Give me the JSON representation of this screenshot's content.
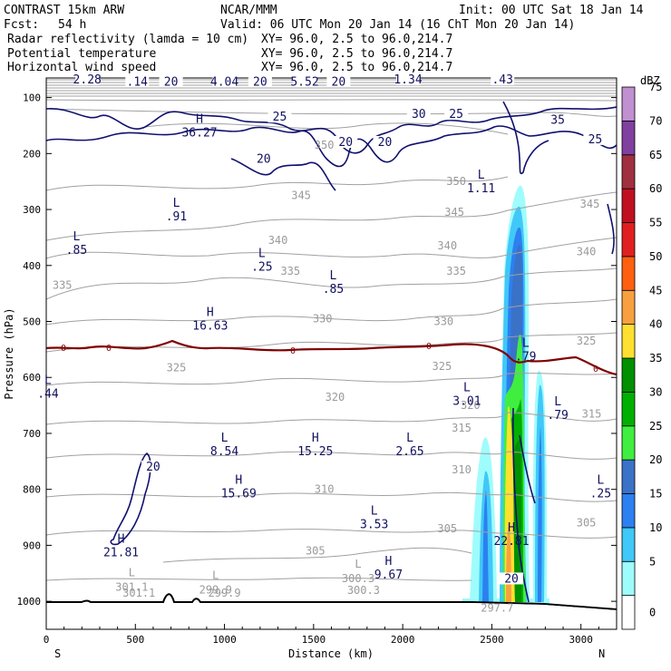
{
  "header": {
    "model": "CONTRAST 15km ARW",
    "org": "NCAR/MMM",
    "init": "Init: 00 UTC Sat 18 Jan 14",
    "fcst_label": "Fcst:",
    "fcst_value": "54 h",
    "valid": "Valid: 06 UTC Mon 20 Jan 14 (16 ChT Mon 20 Jan 14)",
    "fields": [
      {
        "name": "Radar reflectivity (lamda = 10 cm)",
        "xy": "XY=  96.0,  2.5 to  96.0,214.7",
        "color": "#000000"
      },
      {
        "name": "Potential temperature",
        "xy": "XY=  96.0,  2.5 to  96.0,214.7",
        "color": "#b0b0b0"
      },
      {
        "name": "Horizontal wind speed",
        "xy": "XY=  96.0,  2.5 to  96.0,214.7",
        "color": "#000080"
      }
    ]
  },
  "chart_data": {
    "type": "cross-section",
    "xlabel": "Distance (km)",
    "ylabel": "Pressure (hPa)",
    "xlim": [
      0,
      3200
    ],
    "ylim": [
      1050,
      65
    ],
    "x_ticks": [
      "0",
      "500",
      "1000",
      "1500",
      "2000",
      "2500",
      "3000"
    ],
    "x_tick_values": [
      0,
      500,
      1000,
      1500,
      2000,
      2500,
      3000
    ],
    "y_ticks": [
      "100",
      "200",
      "300",
      "400",
      "500",
      "600",
      "700",
      "800",
      "900",
      "1000"
    ],
    "y_tick_values": [
      100,
      200,
      300,
      400,
      500,
      600,
      700,
      800,
      900,
      1000
    ],
    "x_end_labels": {
      "left": "S",
      "right": "N"
    },
    "colorbar": {
      "unit": "dBZ",
      "levels": [
        "0",
        "5",
        "10",
        "15",
        "20",
        "25",
        "30",
        "35",
        "40",
        "45",
        "50",
        "55",
        "60",
        "65",
        "70",
        "75"
      ],
      "colors": [
        "#ffffff",
        "#9ffcfc",
        "#40c8f8",
        "#2c80f0",
        "#3a72c8",
        "#40ee40",
        "#00b000",
        "#009000",
        "#ffe030",
        "#f8a040",
        "#ff6010",
        "#e02020",
        "#c01020",
        "#a03040",
        "#8040a0",
        "#c090d0"
      ]
    },
    "theta_labels": [
      {
        "text": "350",
        "x": 1560,
        "p": 185
      },
      {
        "text": "350",
        "x": 2300,
        "p": 250
      },
      {
        "text": "345",
        "x": 1430,
        "p": 275
      },
      {
        "text": "345",
        "x": 2290,
        "p": 305
      },
      {
        "text": "345",
        "x": 3050,
        "p": 290
      },
      {
        "text": "340",
        "x": 1300,
        "p": 355
      },
      {
        "text": "340",
        "x": 2250,
        "p": 365
      },
      {
        "text": "340",
        "x": 3030,
        "p": 375
      },
      {
        "text": "335",
        "x": 90,
        "p": 435
      },
      {
        "text": "335",
        "x": 1370,
        "p": 410
      },
      {
        "text": "335",
        "x": 2300,
        "p": 410
      },
      {
        "text": "330",
        "x": 1550,
        "p": 495
      },
      {
        "text": "330",
        "x": 2230,
        "p": 500
      },
      {
        "text": "325",
        "x": 730,
        "p": 583
      },
      {
        "text": "325",
        "x": 2220,
        "p": 580
      },
      {
        "text": "325",
        "x": 3030,
        "p": 535
      },
      {
        "text": "320",
        "x": 1620,
        "p": 635
      },
      {
        "text": "320",
        "x": 2380,
        "p": 650
      },
      {
        "text": "315",
        "x": 2330,
        "p": 690
      },
      {
        "text": "315",
        "x": 3060,
        "p": 665
      },
      {
        "text": "310",
        "x": 2330,
        "p": 765
      },
      {
        "text": "310",
        "x": 1560,
        "p": 800
      },
      {
        "text": "305",
        "x": 1510,
        "p": 910
      },
      {
        "text": "305",
        "x": 2250,
        "p": 870
      },
      {
        "text": "305",
        "x": 3030,
        "p": 860
      },
      {
        "text": "297.7",
        "x": 2530,
        "p": 1012
      },
      {
        "text": "301.1",
        "x": 520,
        "p": 985
      },
      {
        "text": "299.9",
        "x": 1000,
        "p": 985
      },
      {
        "text": "300.3",
        "x": 1780,
        "p": 980
      }
    ],
    "theta_extrema": [
      {
        "kind": "L",
        "value": "301.1",
        "x": 480,
        "p": 955
      },
      {
        "kind": "L",
        "value": "299.9",
        "x": 950,
        "p": 960
      },
      {
        "kind": "L",
        "value": "300.3",
        "x": 1750,
        "p": 940
      }
    ],
    "wind_labels": [
      {
        "text": "2.28",
        "x": 230,
        "p": 68
      },
      {
        "text": ".14",
        "x": 510,
        "p": 72
      },
      {
        "text": "20",
        "x": 700,
        "p": 72
      },
      {
        "text": "4.04",
        "x": 1000,
        "p": 72
      },
      {
        "text": "20",
        "x": 1200,
        "p": 72
      },
      {
        "text": "5.52",
        "x": 1450,
        "p": 72
      },
      {
        "text": "20",
        "x": 1640,
        "p": 72
      },
      {
        "text": "1.34",
        "x": 2030,
        "p": 68
      },
      {
        "text": ".43",
        "x": 2560,
        "p": 68
      },
      {
        "text": "25",
        "x": 1310,
        "p": 135
      },
      {
        "text": "30",
        "x": 2090,
        "p": 130
      },
      {
        "text": "25",
        "x": 2300,
        "p": 130
      },
      {
        "text": "35",
        "x": 2870,
        "p": 140
      },
      {
        "text": "25",
        "x": 3080,
        "p": 175
      },
      {
        "text": "20",
        "x": 1220,
        "p": 210
      },
      {
        "text": "20",
        "x": 1680,
        "p": 180
      },
      {
        "text": "20",
        "x": 1900,
        "p": 180
      },
      {
        "text": "20",
        "x": 600,
        "p": 760
      },
      {
        "text": "20",
        "x": 2610,
        "p": 960
      }
    ],
    "wind_extrema": [
      {
        "kind": "H",
        "value": "36.27",
        "x": 860,
        "p": 145
      },
      {
        "kind": "L",
        "value": "1.11",
        "x": 2440,
        "p": 245
      },
      {
        "kind": "L",
        "value": ".91",
        "x": 730,
        "p": 295
      },
      {
        "kind": "L",
        "value": ".85",
        "x": 170,
        "p": 355
      },
      {
        "kind": "L",
        "value": ".25",
        "x": 1210,
        "p": 385
      },
      {
        "kind": "L",
        "value": ".85",
        "x": 1610,
        "p": 425
      },
      {
        "kind": "H",
        "value": "16.63",
        "x": 920,
        "p": 490
      },
      {
        "kind": "L",
        "value": ".79",
        "x": 2690,
        "p": 545
      },
      {
        "kind": "L",
        "value": "3.01",
        "x": 2360,
        "p": 625
      },
      {
        "kind": "L",
        "value": ".79",
        "x": 2870,
        "p": 650
      },
      {
        "kind": "L",
        "value": ".44",
        "x": 10,
        "p": 612
      },
      {
        "kind": "L",
        "value": "8.54",
        "x": 1000,
        "p": 715
      },
      {
        "kind": "H",
        "value": "15.25",
        "x": 1510,
        "p": 715
      },
      {
        "kind": "L",
        "value": "2.65",
        "x": 2040,
        "p": 715
      },
      {
        "kind": "H",
        "value": "15.69",
        "x": 1080,
        "p": 790
      },
      {
        "kind": "L",
        "value": ".25",
        "x": 3110,
        "p": 790
      },
      {
        "kind": "L",
        "value": "3.53",
        "x": 1840,
        "p": 845
      },
      {
        "kind": "H",
        "value": "21.81",
        "x": 420,
        "p": 895
      },
      {
        "kind": "H",
        "value": "22.81",
        "x": 2610,
        "p": 875
      },
      {
        "kind": "H",
        "value": "9.67",
        "x": 1920,
        "p": 935
      }
    ],
    "zero_label": "0"
  }
}
